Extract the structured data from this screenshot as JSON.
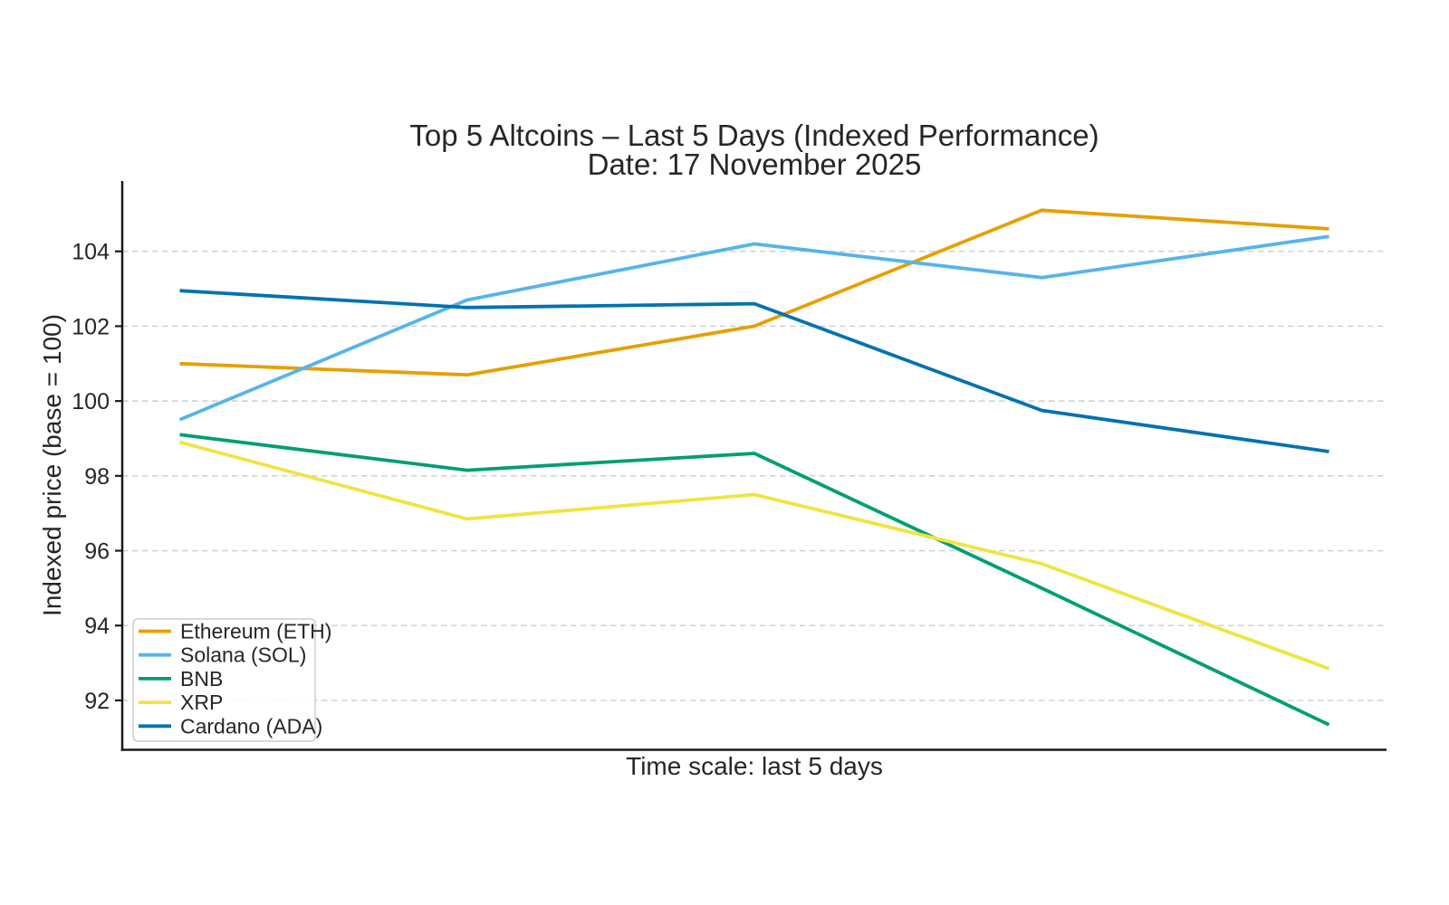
{
  "title": "Top 5 Altcoins – Last 5 Days (Indexed Performance)",
  "subtitle": "Date: 17 November 2025",
  "chart_data": {
    "type": "line",
    "title": "Top 5 Altcoins – Last 5 Days (Indexed Performance)",
    "subtitle": "Date: 17 November 2025",
    "xlabel": "Time scale: last 5 days",
    "ylabel": "Indexed price (base = 100)",
    "num_points": 5,
    "x_tick_labels_visible": false,
    "yticks": [
      92,
      94,
      96,
      98,
      100,
      102,
      104
    ],
    "ylim": [
      90.68,
      105.88
    ],
    "grid": "horizontal-dashed",
    "legend_position": "lower-left",
    "series": [
      {
        "name": "Ethereum (ETH)",
        "color": "#E69F00",
        "values": [
          101.0,
          100.7,
          102.0,
          105.1,
          104.6
        ]
      },
      {
        "name": "Solana (SOL)",
        "color": "#56B4E9",
        "values": [
          99.5,
          102.7,
          104.2,
          103.3,
          104.4
        ]
      },
      {
        "name": "BNB",
        "color": "#009E73",
        "values": [
          99.1,
          98.15,
          98.6,
          95.0,
          91.35
        ]
      },
      {
        "name": "XRP",
        "color": "#F0E442",
        "values": [
          98.9,
          96.85,
          97.5,
          95.65,
          92.85
        ]
      },
      {
        "name": "Cardano (ADA)",
        "color": "#0072B2",
        "values": [
          102.95,
          102.5,
          102.6,
          99.75,
          98.65
        ]
      }
    ]
  },
  "style_colors": {
    "text": "#262626",
    "grid": "#cdcdcd",
    "axis": "#1a1a1a",
    "legend_border": "#cccccc",
    "background": "#ffffff"
  }
}
